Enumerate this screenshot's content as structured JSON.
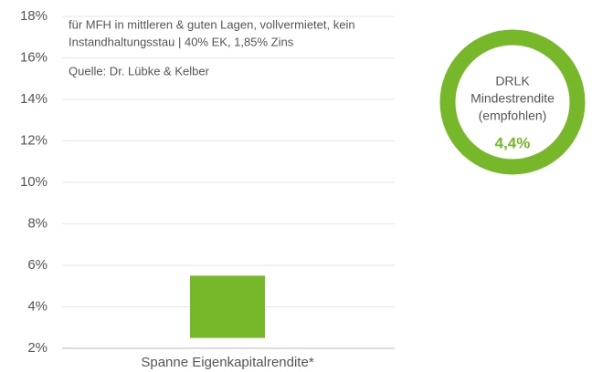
{
  "chart_data": {
    "type": "floating-bar",
    "annotations": [
      "für MFH in mittleren & guten Lagen, vollvermietet, kein",
      "Instandhaltungsstau | 40% EK, 1,85% Zins",
      "Quelle: Dr. Lübke & Kelber"
    ],
    "categories": [
      "Spanne Eigenkapitalrendite*"
    ],
    "low": [
      2.5
    ],
    "high": [
      5.5
    ],
    "color": "#76b82a",
    "ylim": [
      2,
      18
    ],
    "yticks": [
      {
        "value": 2,
        "label": "2%"
      },
      {
        "value": 4,
        "label": "4%"
      },
      {
        "value": 6,
        "label": "6%"
      },
      {
        "value": 8,
        "label": "8%"
      },
      {
        "value": 10,
        "label": "10%"
      },
      {
        "value": 12,
        "label": "12%"
      },
      {
        "value": 14,
        "label": "14%"
      },
      {
        "value": 16,
        "label": "16%"
      },
      {
        "value": 18,
        "label": "18%"
      }
    ],
    "grid": true,
    "donut": {
      "lines": [
        "DRLK",
        "Mindestrendite",
        "(empfohlen)"
      ],
      "value": 4.4,
      "value_label": "4,4%",
      "color": "#76b82a"
    }
  }
}
